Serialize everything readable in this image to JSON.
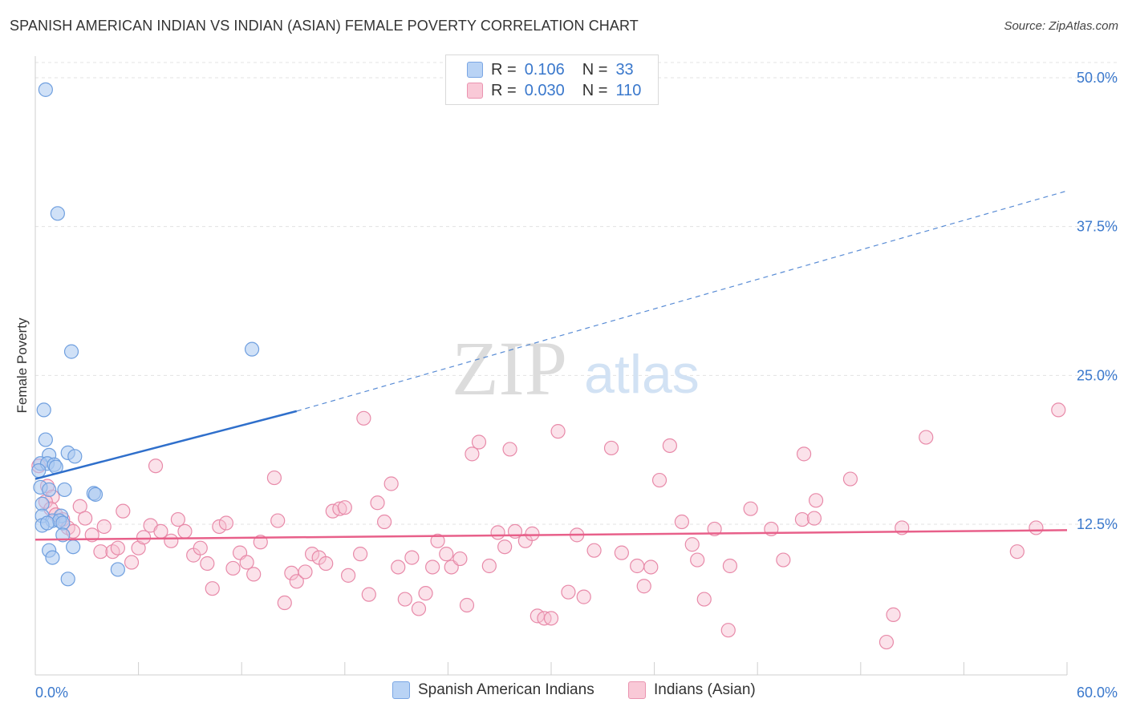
{
  "title": "SPANISH AMERICAN INDIAN VS INDIAN (ASIAN) FEMALE POVERTY CORRELATION CHART",
  "source": "Source: ZipAtlas.com",
  "watermark": {
    "zip": "ZIP",
    "atlas": "atlas"
  },
  "legend": {
    "blue": {
      "r_label": "R =",
      "r_value": "0.106",
      "n_label": "N =",
      "n_value": "33"
    },
    "pink": {
      "r_label": "R =",
      "r_value": "0.030",
      "n_label": "N =",
      "n_value": "110"
    }
  },
  "colors": {
    "blue_fill": "#a9c8f0",
    "blue_stroke": "#6f9fdf",
    "blue_line": "#2f6fcb",
    "pink_fill": "#f6bfd0",
    "pink_stroke": "#e88aa9",
    "pink_line": "#e8608a",
    "tick_text": "#3a78cc",
    "grid": "#e3e3e3"
  },
  "chart_data": {
    "type": "scatter",
    "title": "SPANISH AMERICAN INDIAN VS INDIAN (ASIAN) FEMALE POVERTY CORRELATION CHART",
    "xlabel": "",
    "ylabel": "Female Poverty",
    "xlim": [
      0,
      60
    ],
    "ylim": [
      0,
      52
    ],
    "x_tick_labels": [
      "0.0%",
      "60.0%"
    ],
    "y_ticks": [
      12.5,
      25.0,
      37.5,
      50.0
    ],
    "y_tick_labels": [
      "12.5%",
      "25.0%",
      "37.5%",
      "50.0%"
    ],
    "grid": true,
    "legend_position": "top-center",
    "series": [
      {
        "name": "Spanish American Indians",
        "color": "blue",
        "R": 0.106,
        "N": 33,
        "trend": {
          "solid": [
            [
              0,
              16.3
            ],
            [
              15.2,
              22.0
            ]
          ],
          "dashed": [
            [
              15.2,
              22.0
            ],
            [
              60,
              40.5
            ]
          ]
        },
        "points": [
          [
            0.6,
            49.0
          ],
          [
            1.3,
            38.6
          ],
          [
            2.1,
            27.0
          ],
          [
            12.6,
            27.2
          ],
          [
            0.5,
            22.1
          ],
          [
            0.6,
            19.6
          ],
          [
            1.9,
            18.5
          ],
          [
            2.3,
            18.2
          ],
          [
            0.8,
            18.3
          ],
          [
            0.3,
            17.6
          ],
          [
            0.7,
            17.6
          ],
          [
            1.1,
            17.5
          ],
          [
            1.2,
            17.3
          ],
          [
            0.2,
            17.0
          ],
          [
            0.3,
            15.6
          ],
          [
            0.8,
            15.4
          ],
          [
            1.7,
            15.4
          ],
          [
            3.4,
            15.1
          ],
          [
            3.5,
            15.0
          ],
          [
            0.4,
            14.2
          ],
          [
            0.4,
            13.2
          ],
          [
            1.5,
            13.2
          ],
          [
            1.0,
            12.8
          ],
          [
            1.4,
            12.8
          ],
          [
            1.6,
            12.6
          ],
          [
            0.4,
            12.4
          ],
          [
            0.7,
            12.6
          ],
          [
            1.6,
            11.6
          ],
          [
            0.8,
            10.3
          ],
          [
            2.2,
            10.6
          ],
          [
            1.0,
            9.7
          ],
          [
            4.8,
            8.7
          ],
          [
            1.9,
            7.9
          ]
        ]
      },
      {
        "name": "Indians (Asian)",
        "color": "pink",
        "R": 0.03,
        "N": 110,
        "trend": {
          "solid": [
            [
              0,
              11.2
            ],
            [
              60,
              12.0
            ]
          ]
        },
        "points": [
          [
            0.2,
            17.4
          ],
          [
            0.7,
            15.7
          ],
          [
            1.0,
            14.8
          ],
          [
            0.6,
            14.4
          ],
          [
            0.9,
            13.8
          ],
          [
            1.2,
            13.3
          ],
          [
            1.6,
            12.9
          ],
          [
            1.9,
            12.2
          ],
          [
            2.2,
            11.9
          ],
          [
            2.6,
            14.0
          ],
          [
            2.9,
            13.0
          ],
          [
            3.3,
            11.6
          ],
          [
            3.8,
            10.2
          ],
          [
            4.0,
            12.3
          ],
          [
            4.5,
            10.2
          ],
          [
            4.8,
            10.5
          ],
          [
            5.1,
            13.6
          ],
          [
            5.6,
            9.3
          ],
          [
            6.0,
            10.5
          ],
          [
            6.3,
            11.4
          ],
          [
            6.7,
            12.4
          ],
          [
            7.0,
            17.4
          ],
          [
            7.3,
            11.9
          ],
          [
            7.9,
            11.1
          ],
          [
            8.3,
            12.9
          ],
          [
            8.7,
            11.9
          ],
          [
            9.2,
            9.9
          ],
          [
            9.6,
            10.5
          ],
          [
            10.0,
            9.2
          ],
          [
            10.3,
            7.1
          ],
          [
            10.7,
            12.3
          ],
          [
            11.1,
            12.6
          ],
          [
            11.5,
            8.8
          ],
          [
            11.9,
            10.1
          ],
          [
            12.3,
            9.3
          ],
          [
            12.7,
            8.3
          ],
          [
            13.1,
            11.0
          ],
          [
            13.9,
            16.4
          ],
          [
            14.1,
            12.8
          ],
          [
            14.5,
            5.9
          ],
          [
            14.9,
            8.4
          ],
          [
            15.2,
            7.7
          ],
          [
            15.7,
            8.5
          ],
          [
            16.1,
            10.0
          ],
          [
            16.5,
            9.7
          ],
          [
            16.9,
            9.2
          ],
          [
            17.3,
            13.6
          ],
          [
            17.7,
            13.8
          ],
          [
            18.0,
            13.9
          ],
          [
            18.2,
            8.2
          ],
          [
            18.9,
            10.0
          ],
          [
            19.1,
            21.4
          ],
          [
            19.4,
            6.6
          ],
          [
            19.9,
            14.3
          ],
          [
            20.3,
            12.7
          ],
          [
            20.7,
            15.9
          ],
          [
            21.1,
            8.9
          ],
          [
            21.5,
            6.2
          ],
          [
            21.9,
            9.7
          ],
          [
            22.3,
            5.4
          ],
          [
            22.7,
            6.7
          ],
          [
            23.1,
            8.9
          ],
          [
            23.4,
            11.1
          ],
          [
            23.9,
            10.0
          ],
          [
            24.2,
            8.9
          ],
          [
            24.7,
            9.6
          ],
          [
            25.1,
            5.7
          ],
          [
            25.4,
            18.4
          ],
          [
            25.8,
            19.4
          ],
          [
            26.4,
            9.0
          ],
          [
            26.9,
            11.8
          ],
          [
            27.3,
            10.6
          ],
          [
            27.6,
            18.8
          ],
          [
            27.9,
            11.9
          ],
          [
            28.5,
            11.1
          ],
          [
            28.9,
            11.7
          ],
          [
            29.2,
            4.8
          ],
          [
            29.6,
            4.6
          ],
          [
            30.0,
            4.6
          ],
          [
            30.4,
            20.3
          ],
          [
            31.0,
            6.8
          ],
          [
            31.5,
            11.6
          ],
          [
            31.9,
            6.4
          ],
          [
            32.5,
            10.3
          ],
          [
            33.5,
            18.9
          ],
          [
            34.1,
            10.1
          ],
          [
            35.0,
            9.0
          ],
          [
            35.4,
            7.3
          ],
          [
            35.8,
            8.9
          ],
          [
            36.3,
            16.2
          ],
          [
            36.9,
            19.1
          ],
          [
            37.6,
            12.7
          ],
          [
            38.2,
            10.8
          ],
          [
            38.5,
            9.5
          ],
          [
            38.9,
            6.2
          ],
          [
            39.5,
            12.1
          ],
          [
            40.3,
            3.6
          ],
          [
            40.4,
            9.0
          ],
          [
            41.6,
            13.8
          ],
          [
            42.8,
            12.1
          ],
          [
            43.5,
            9.5
          ],
          [
            44.6,
            12.9
          ],
          [
            44.7,
            18.4
          ],
          [
            45.3,
            13.0
          ],
          [
            45.4,
            14.5
          ],
          [
            47.4,
            16.3
          ],
          [
            49.5,
            2.6
          ],
          [
            49.9,
            4.9
          ],
          [
            50.4,
            12.2
          ],
          [
            51.8,
            19.8
          ],
          [
            57.1,
            10.2
          ],
          [
            58.2,
            12.2
          ],
          [
            59.5,
            22.1
          ]
        ]
      }
    ]
  },
  "bottom_legend": [
    {
      "label": "Spanish American Indians"
    },
    {
      "label": "Indians (Asian)"
    }
  ]
}
